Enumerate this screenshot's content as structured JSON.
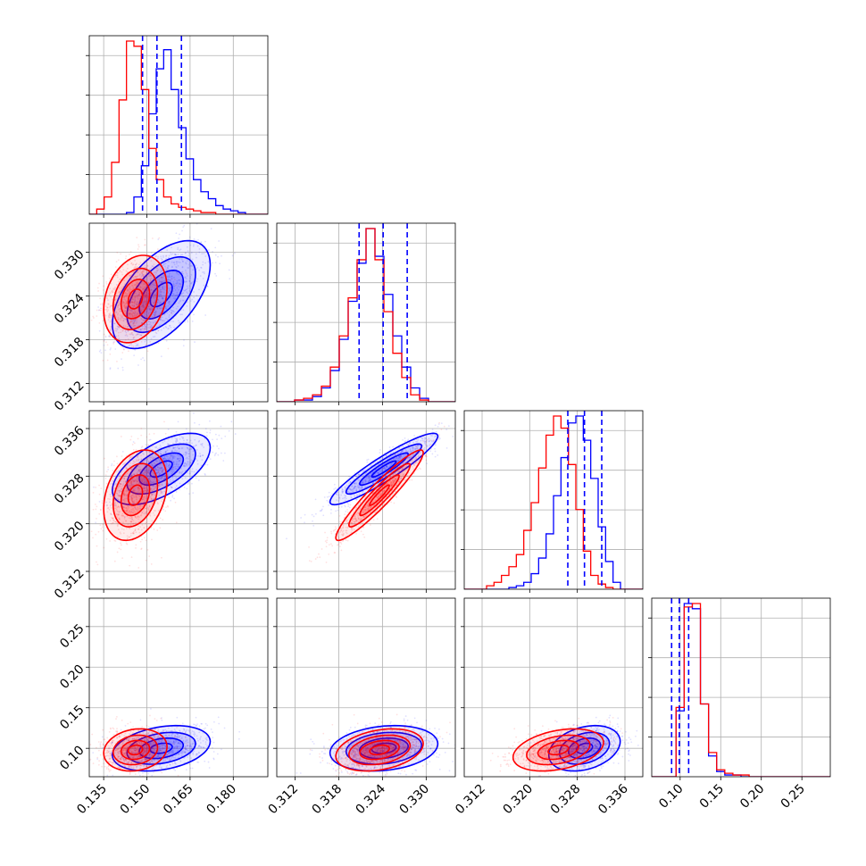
{
  "colors": {
    "blue": "#0000ff",
    "red": "#ff0000",
    "grid": "#b0b0b0"
  },
  "chart_data": {
    "type": "corner",
    "grid": true,
    "parameters": [
      {
        "id": "p0",
        "range": [
          0.13,
          0.192
        ],
        "ticks": [
          0.135,
          0.15,
          0.165,
          0.18
        ],
        "tick_labels": [
          "0.135",
          "0.150",
          "0.165",
          "0.180"
        ]
      },
      {
        "id": "p1",
        "range": [
          0.3095,
          0.334
        ],
        "ticks": [
          0.312,
          0.318,
          0.324,
          0.33
        ],
        "tick_labels": [
          "0.312",
          "0.318",
          "0.324",
          "0.330"
        ]
      },
      {
        "id": "p2",
        "range": [
          0.309,
          0.339
        ],
        "ticks": [
          0.312,
          0.32,
          0.328,
          0.336
        ],
        "tick_labels": [
          "0.312",
          "0.320",
          "0.328",
          "0.336"
        ]
      },
      {
        "id": "p3",
        "range": [
          0.065,
          0.285
        ],
        "ticks": [
          0.1,
          0.15,
          0.2,
          0.25
        ],
        "tick_labels": [
          "0.10",
          "0.15",
          "0.20",
          "0.25"
        ]
      }
    ],
    "series": [
      {
        "color": "#0000ff",
        "mean": [
          0.155,
          0.3242,
          0.3292,
          0.1
        ],
        "sd": [
          0.0085,
          0.0037,
          0.003,
          0.014
        ],
        "corr": [
          [
            1,
            0.55,
            0.6,
            0.3
          ],
          [
            0.55,
            1,
            0.92,
            0.2
          ],
          [
            0.6,
            0.92,
            1,
            0.3
          ],
          [
            0.3,
            0.2,
            0.3,
            1
          ]
        ],
        "quantiles": [
          [
            0.1485,
            0.1535,
            0.162
          ],
          [
            0.3208,
            0.3241,
            0.3274
          ],
          [
            0.3264,
            0.3292,
            0.3321
          ],
          [
            0.0895,
            0.099,
            0.1105
          ]
        ],
        "hist": [
          {
            "range": [
              0.13,
              0.192
            ],
            "counts": [
              0,
              0,
              0,
              0,
              0,
              1,
              10,
              28,
              58,
              84,
              95,
              72,
              50,
              32,
              20,
              13,
              9,
              5,
              3,
              2,
              1,
              0,
              0,
              0
            ]
          },
          {
            "range": [
              0.3095,
              0.334
            ],
            "counts": [
              0,
              0,
              1,
              1,
              3,
              8,
              18,
              36,
              58,
              80,
              100,
              84,
              62,
              38,
              20,
              8,
              2,
              0,
              0,
              0
            ]
          },
          {
            "range": [
              0.309,
              0.339
            ],
            "counts": [
              0,
              0,
              0,
              0,
              0,
              0,
              1,
              2,
              4,
              9,
              18,
              32,
              54,
              76,
              96,
              100,
              86,
              64,
              36,
              16,
              4,
              0,
              0,
              0
            ]
          },
          {
            "range": [
              0.065,
              0.285
            ],
            "counts": [
              0,
              0,
              0,
              38,
              100,
              97,
              42,
              12,
              3,
              1,
              1,
              0,
              0,
              0,
              0,
              0,
              0,
              0,
              0,
              0,
              0,
              0
            ]
          }
        ]
      },
      {
        "color": "#ff0000",
        "mean": [
          0.146,
          0.3236,
          0.3248,
          0.098
        ],
        "sd": [
          0.0055,
          0.003,
          0.0038,
          0.013
        ],
        "corr": [
          [
            1,
            0.25,
            0.3,
            0.15
          ],
          [
            0.25,
            1,
            0.94,
            0.3
          ],
          [
            0.3,
            0.94,
            1,
            0.35
          ],
          [
            0.15,
            0.3,
            0.35,
            1
          ]
        ],
        "quantiles": [],
        "hist": [
          {
            "range": [
              0.13,
              0.192
            ],
            "counts": [
              0,
              3,
              10,
              30,
              66,
              100,
              97,
              72,
              38,
              20,
              10,
              6,
              4,
              3,
              2,
              1,
              1,
              0,
              0,
              0,
              0,
              0,
              0,
              0
            ]
          },
          {
            "range": [
              0.3095,
              0.334
            ],
            "counts": [
              0,
              0,
              1,
              2,
              4,
              9,
              20,
              38,
              60,
              82,
              100,
              82,
              52,
              28,
              14,
              4,
              1,
              0,
              0,
              0
            ]
          },
          {
            "range": [
              0.309,
              0.339
            ],
            "counts": [
              0,
              0,
              0,
              2,
              4,
              8,
              13,
              20,
              34,
              50,
              70,
              89,
              100,
              93,
              72,
              46,
              22,
              8,
              3,
              1,
              0,
              0,
              0,
              0
            ]
          },
          {
            "range": [
              0.065,
              0.285
            ],
            "counts": [
              0,
              0,
              0,
              40,
              98,
              100,
              42,
              14,
              4,
              2,
              1,
              1,
              0,
              0,
              0,
              0,
              0,
              0,
              0,
              0,
              0,
              0
            ]
          }
        ]
      }
    ]
  }
}
